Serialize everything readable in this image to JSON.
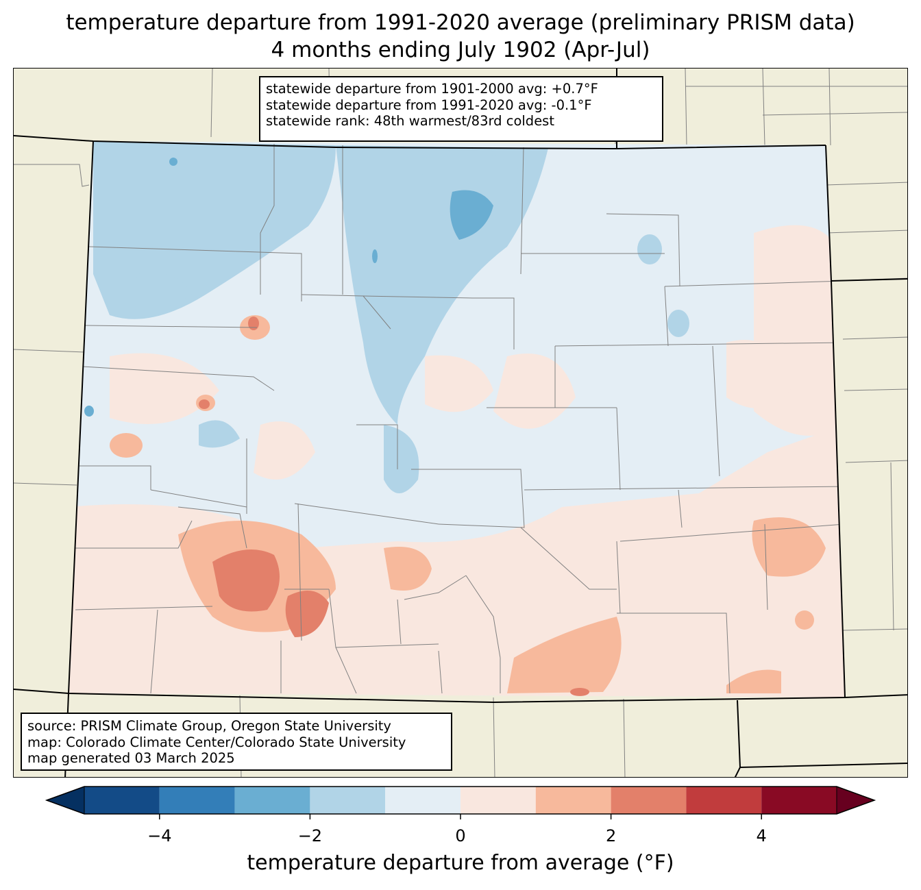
{
  "title": {
    "line1": "temperature departure from 1991-2020 average (preliminary PRISM data)",
    "line2": "4 months ending July 1902 (Apr-Jul)"
  },
  "stats_box": {
    "line1": "statewide departure from 1901-2000 avg: +0.7°F",
    "line2": "statewide departure from 1991-2020 avg: -0.1°F",
    "line3": "statewide rank: 48th warmest/83rd coldest"
  },
  "source_box": {
    "line1": "source: PRISM Climate Group, Oregon State University",
    "line2": "map: Colorado Climate Center/Colorado State University",
    "line3": "map generated 03 March 2025"
  },
  "colorbar": {
    "label": "temperature departure from average (°F)",
    "range": [
      -5,
      5
    ],
    "ticks": [
      {
        "value": -4,
        "label": "−4"
      },
      {
        "value": -2,
        "label": "−2"
      },
      {
        "value": 0,
        "label": "0"
      },
      {
        "value": 2,
        "label": "2"
      },
      {
        "value": 4,
        "label": "4"
      }
    ],
    "bins": [
      {
        "min": -5,
        "max": -4,
        "color": "#134b87"
      },
      {
        "min": -4,
        "max": -3,
        "color": "#337eb8"
      },
      {
        "min": -3,
        "max": -2,
        "color": "#6aaed2"
      },
      {
        "min": -2,
        "max": -1,
        "color": "#b1d4e7"
      },
      {
        "min": -1,
        "max": 0,
        "color": "#e4eef5"
      },
      {
        "min": 0,
        "max": 1,
        "color": "#f9e7df"
      },
      {
        "min": 1,
        "max": 2,
        "color": "#f7b99c"
      },
      {
        "min": 2,
        "max": 3,
        "color": "#e3806a"
      },
      {
        "min": 3,
        "max": 4,
        "color": "#c13c3d"
      },
      {
        "min": 4,
        "max": 5,
        "color": "#890a24"
      }
    ],
    "under_color": "#053061",
    "over_color": "#67001f"
  },
  "map": {
    "region": "Colorado",
    "background_color": "#f0eedb",
    "state_line_color": "#000000",
    "county_line_color": "#808080"
  }
}
